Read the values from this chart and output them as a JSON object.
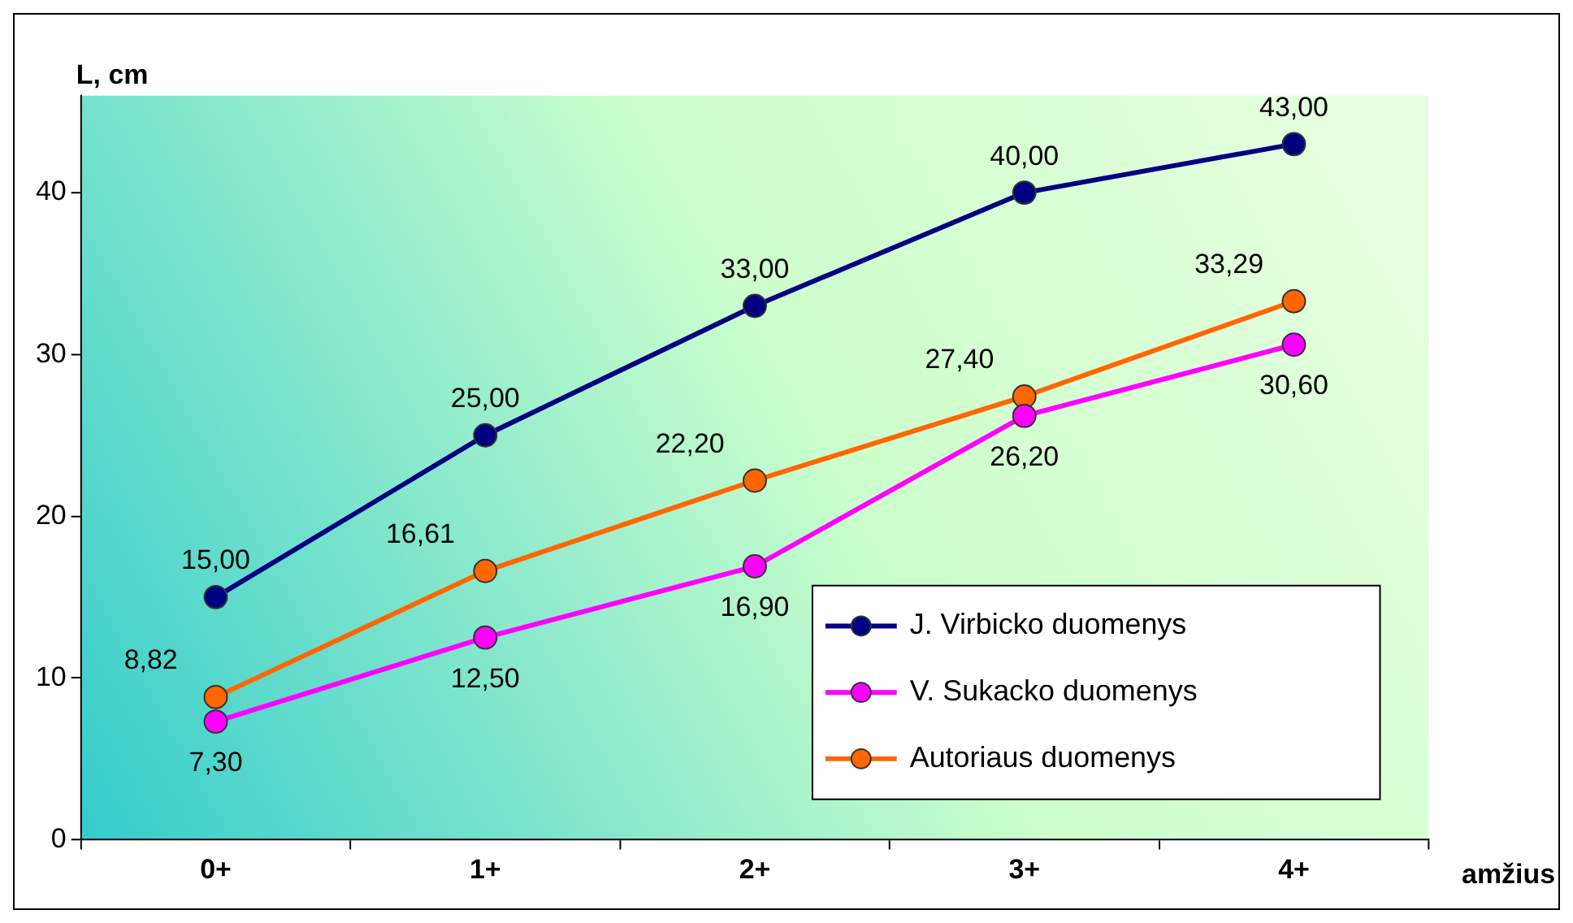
{
  "chart_data": {
    "type": "line",
    "ylabel": "L, cm",
    "xlabel": "amžius",
    "categories": [
      "0+",
      "1+",
      "2+",
      "3+",
      "4+"
    ],
    "ylim": [
      0,
      46
    ],
    "yticks": [
      0,
      10,
      20,
      30,
      40
    ],
    "grid": false,
    "legend": "bottom right",
    "marker": "circle",
    "line_style": "solid",
    "series": [
      {
        "name": "J. Virbicko duomenys",
        "color": "#000080",
        "values": [
          15,
          25,
          33,
          40,
          43
        ],
        "value_labels": [
          "15,00",
          "25,00",
          "33,00",
          "40,00",
          "43,00"
        ]
      },
      {
        "name": "V. Sukacko duomenys",
        "color": "#ff00ff",
        "values": [
          7.3,
          12.5,
          16.9,
          26.2,
          30.6
        ],
        "value_labels": [
          "7,30",
          "12,50",
          "16,90",
          "26,20",
          "30,60"
        ]
      },
      {
        "name": "Autoriaus duomenys",
        "color": "#ff6600",
        "values": [
          8.82,
          16.61,
          22.2,
          27.4,
          33.29
        ],
        "value_labels": [
          "8,82",
          "16,61",
          "22,20",
          "27,40",
          "33,29"
        ]
      }
    ]
  }
}
